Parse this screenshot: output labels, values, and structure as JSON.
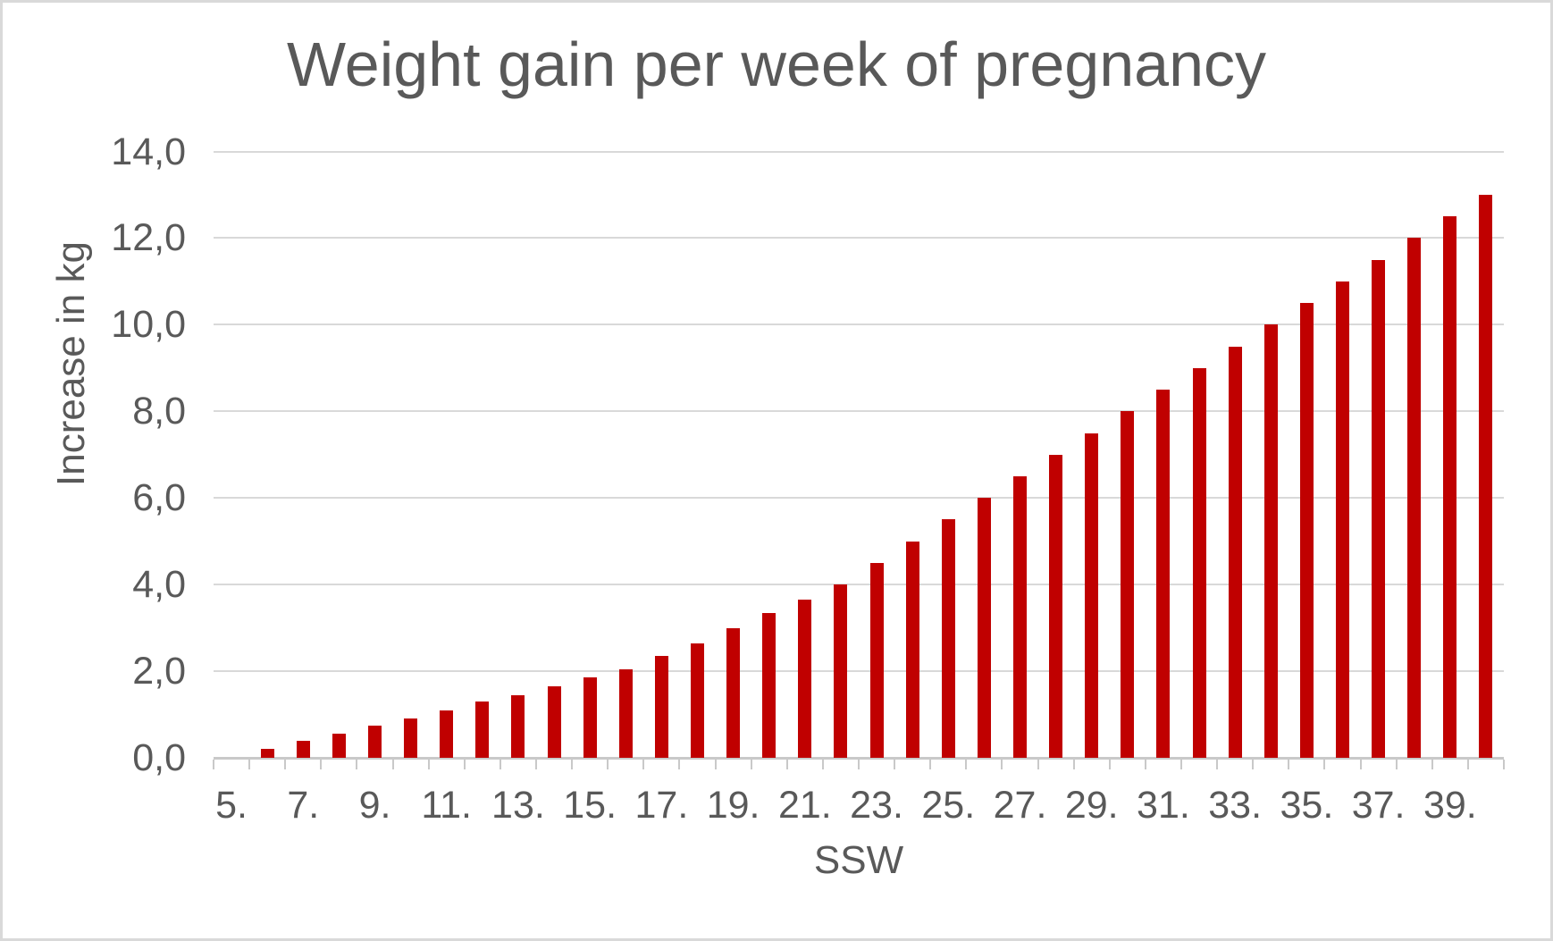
{
  "chart_data": {
    "type": "bar",
    "title": "Weight gain per week of pregnancy",
    "xlabel": "SSW",
    "ylabel": "Increase in kg",
    "categories": [
      5,
      6,
      7,
      8,
      9,
      10,
      11,
      12,
      13,
      14,
      15,
      16,
      17,
      18,
      19,
      20,
      21,
      22,
      23,
      24,
      25,
      26,
      27,
      28,
      29,
      30,
      31,
      32,
      33,
      34,
      35,
      36,
      37,
      38,
      39,
      40
    ],
    "values": [
      0,
      0.2,
      0.4,
      0.55,
      0.75,
      0.9,
      1.1,
      1.3,
      1.45,
      1.65,
      1.85,
      2.05,
      2.35,
      2.65,
      3.0,
      3.35,
      3.65,
      4.0,
      4.5,
      5.0,
      5.5,
      6.0,
      6.5,
      7.0,
      7.5,
      8.0,
      8.5,
      9.0,
      9.5,
      10.0,
      10.5,
      11.0,
      11.5,
      12.0,
      12.5,
      13.0
    ],
    "ylim": [
      0,
      14
    ],
    "ytick_step": 2,
    "ytick_labels": [
      "0,0",
      "2,0",
      "4,0",
      "6,0",
      "8,0",
      "10,0",
      "12,0",
      "14,0"
    ],
    "xtick_labels": [
      "5.",
      "7.",
      "9.",
      "11.",
      "13.",
      "15.",
      "17.",
      "19.",
      "21.",
      "23.",
      "25.",
      "27.",
      "29.",
      "31.",
      "33.",
      "35.",
      "37.",
      "39."
    ],
    "grid": true,
    "legend": false,
    "colors": {
      "bar": "#c00000",
      "gridline": "#d9d9d9",
      "axis_line": "#c9c9c9",
      "text": "#595959",
      "frame": "#d9d9d9",
      "background": "#ffffff"
    }
  }
}
